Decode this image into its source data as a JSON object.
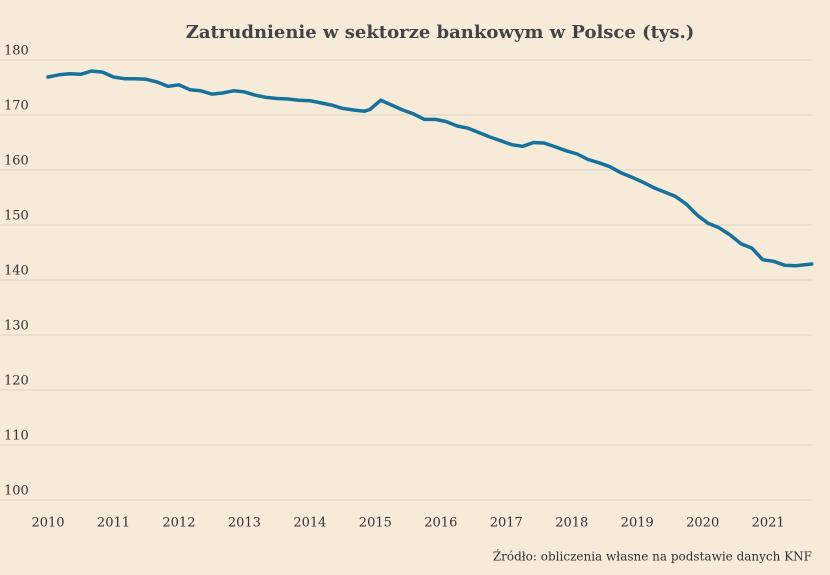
{
  "chart_data": {
    "type": "line",
    "title": "Zatrudnienie w sektorze bankowym w Polsce (tys.)",
    "source": "Źródło: obliczenia własne na podstawie danych KNF",
    "x": [
      2010.0,
      2010.167,
      2010.333,
      2010.5,
      2010.667,
      2010.833,
      2011.0,
      2011.167,
      2011.333,
      2011.5,
      2011.667,
      2011.833,
      2012.0,
      2012.167,
      2012.333,
      2012.5,
      2012.667,
      2012.833,
      2013.0,
      2013.167,
      2013.333,
      2013.5,
      2013.667,
      2013.833,
      2014.0,
      2014.167,
      2014.333,
      2014.5,
      2014.667,
      2014.833,
      2014.917,
      2015.083,
      2015.25,
      2015.417,
      2015.583,
      2015.75,
      2015.917,
      2016.083,
      2016.25,
      2016.417,
      2016.583,
      2016.75,
      2016.917,
      2017.083,
      2017.25,
      2017.417,
      2017.583,
      2017.75,
      2017.917,
      2018.083,
      2018.25,
      2018.417,
      2018.583,
      2018.75,
      2018.917,
      2019.083,
      2019.25,
      2019.417,
      2019.583,
      2019.75,
      2019.917,
      2020.083,
      2020.25,
      2020.417,
      2020.583,
      2020.75,
      2020.917,
      2021.083,
      2021.25,
      2021.417,
      2021.583,
      2021.667
    ],
    "series": [
      {
        "name": "Zatrudnienie",
        "color": "#17729b",
        "values": [
          176.9,
          177.3,
          177.5,
          177.4,
          178.0,
          177.8,
          176.9,
          176.6,
          176.6,
          176.5,
          176.0,
          175.2,
          175.5,
          174.6,
          174.4,
          173.8,
          174.0,
          174.4,
          174.2,
          173.6,
          173.2,
          173.0,
          172.9,
          172.7,
          172.6,
          172.2,
          171.8,
          171.2,
          170.9,
          170.7,
          171.0,
          172.7,
          171.8,
          170.9,
          170.2,
          169.2,
          169.2,
          168.8,
          168.0,
          167.6,
          166.8,
          166.0,
          165.3,
          164.6,
          164.3,
          165.0,
          164.9,
          164.2,
          163.5,
          162.9,
          161.9,
          161.3,
          160.6,
          159.5,
          158.7,
          157.8,
          156.8,
          156.0,
          155.2,
          153.8,
          151.8,
          150.3,
          149.5,
          148.2,
          146.6,
          145.8,
          143.7,
          143.4,
          142.7,
          142.6,
          142.8,
          142.9
        ]
      }
    ],
    "xlim": [
      2010,
      2021.7
    ],
    "xticks": [
      2010,
      2011,
      2012,
      2013,
      2014,
      2015,
      2016,
      2017,
      2018,
      2019,
      2020,
      2021
    ],
    "ylim": [
      100,
      180
    ],
    "yticks": [
      100,
      110,
      120,
      130,
      140,
      150,
      160,
      170,
      180
    ],
    "grid": true
  }
}
